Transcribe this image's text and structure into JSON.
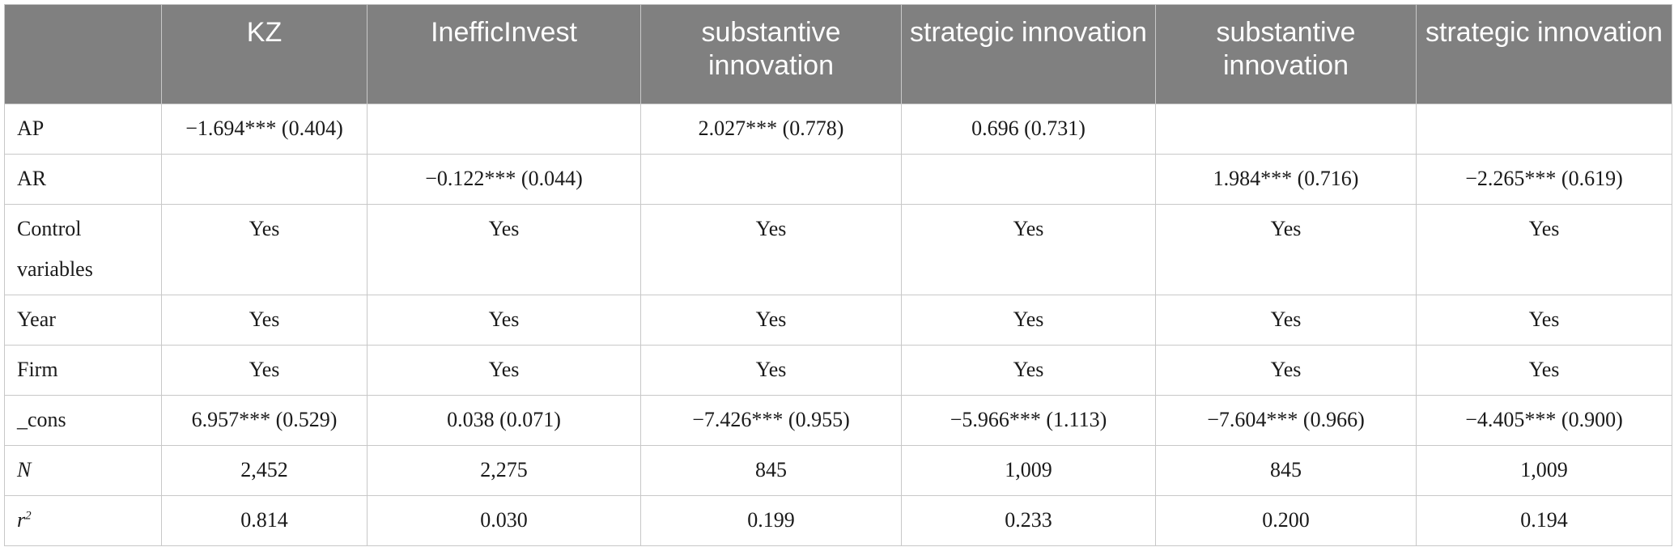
{
  "table": {
    "headers": [
      "",
      "KZ",
      "InefficInvest",
      "substantive innovation",
      "strategic innovation",
      "substantive innovation",
      "strategic innovation"
    ],
    "rows": [
      {
        "label": "AP",
        "cells": [
          "−1.694*** (0.404)",
          "",
          "2.027*** (0.778)",
          "0.696 (0.731)",
          "",
          ""
        ]
      },
      {
        "label": "AR",
        "cells": [
          "",
          "−0.122*** (0.044)",
          "",
          "",
          "1.984*** (0.716)",
          "−2.265*** (0.619)"
        ]
      },
      {
        "label": "Control variables",
        "cells": [
          "Yes",
          "Yes",
          "Yes",
          "Yes",
          "Yes",
          "Yes"
        ]
      },
      {
        "label": "Year",
        "cells": [
          "Yes",
          "Yes",
          "Yes",
          "Yes",
          "Yes",
          "Yes"
        ]
      },
      {
        "label": "Firm",
        "cells": [
          "Yes",
          "Yes",
          "Yes",
          "Yes",
          "Yes",
          "Yes"
        ]
      },
      {
        "label": "_cons",
        "cells": [
          "6.957*** (0.529)",
          "0.038 (0.071)",
          "−7.426*** (0.955)",
          "−5.966*** (1.113)",
          "−7.604*** (0.966)",
          "−4.405*** (0.900)"
        ]
      },
      {
        "label": "N",
        "cells": [
          "2,452",
          "2,275",
          "845",
          "1,009",
          "845",
          "1,009"
        ]
      },
      {
        "label_base": "r",
        "label_sup": "2",
        "cells": [
          "0.814",
          "0.030",
          "0.199",
          "0.233",
          "0.200",
          "0.194"
        ]
      }
    ]
  }
}
